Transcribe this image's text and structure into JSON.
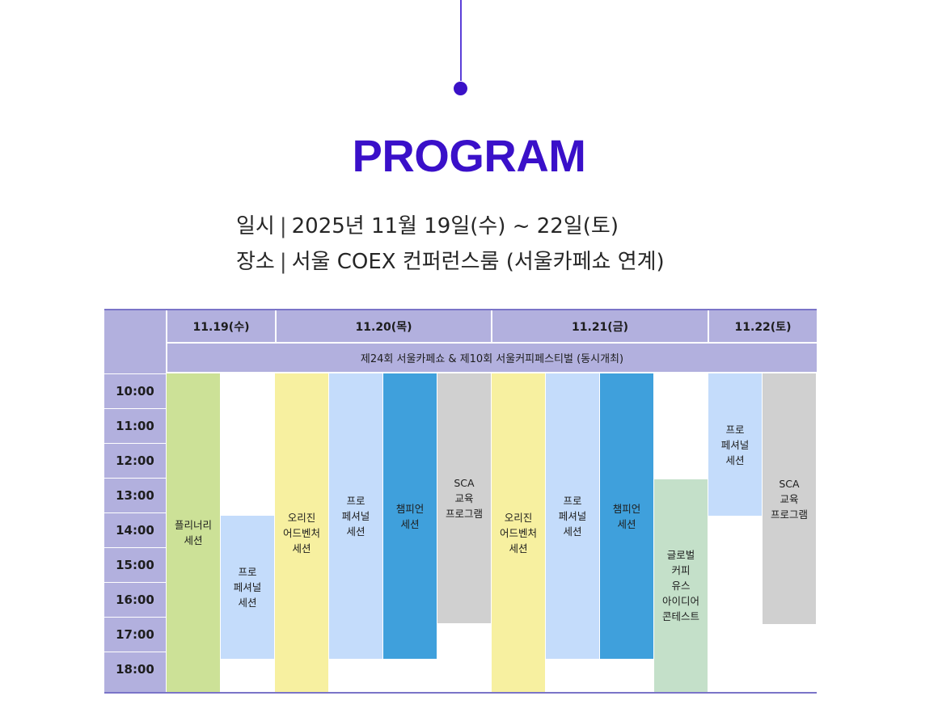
{
  "header": {
    "title": "PROGRAM",
    "date_label": "일시",
    "date_value": "2025년 11월 19일(수) ~ 22일(토)",
    "place_label": "장소",
    "place_value": "서울 COEX 컨퍼런스룸 (서울카페쇼 연계)"
  },
  "schedule": {
    "days": [
      "11.19(수)",
      "11.20(목)",
      "11.21(금)",
      "11.22(토)"
    ],
    "banner": "제24회 서울카페쇼 & 제10회 서울커피페스티벌 (동시개최)",
    "times": [
      "10:00",
      "11:00",
      "12:00",
      "13:00",
      "14:00",
      "15:00",
      "16:00",
      "17:00",
      "18:00"
    ],
    "events": [
      {
        "label": "플리너리\n세션",
        "color": "#cce197"
      },
      {
        "label": "프로\n페셔널\n세션",
        "color": "#c4dcfb"
      },
      {
        "label": "오리진\n어드벤처\n세션",
        "color": "#f7f0a0"
      },
      {
        "label": "프로\n페셔널\n세션",
        "color": "#c4dcfb"
      },
      {
        "label": "챔피언\n세션",
        "color": "#3fa0dc"
      },
      {
        "label": "SCA\n교육\n프로그램",
        "color": "#d0d0d0"
      },
      {
        "label": "오리진\n어드벤처\n세션",
        "color": "#f7f0a0"
      },
      {
        "label": "프로\n페셔널\n세션",
        "color": "#c4dcfb"
      },
      {
        "label": "챔피언\n세션",
        "color": "#3fa0dc"
      },
      {
        "label": "글로벌\n커피\n유스\n아이디어\n콘테스트",
        "color": "#c4e0c9"
      },
      {
        "label": "프로\n페셔널\n세션",
        "color": "#c4dcfb"
      },
      {
        "label": "SCA\n교육\n프로그램",
        "color": "#d0d0d0"
      }
    ]
  },
  "colors": {
    "title": "#3a10c9",
    "header_band": "#b2b0de"
  }
}
